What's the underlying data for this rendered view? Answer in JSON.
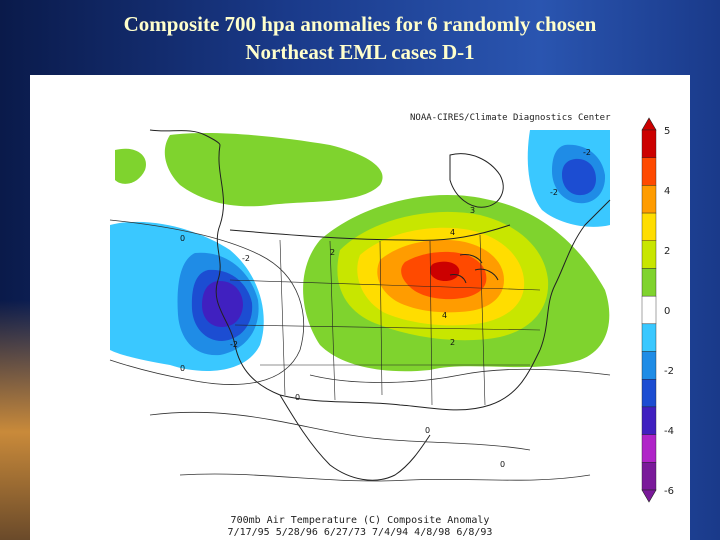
{
  "slide": {
    "title_line1": "Composite 700 hpa anomalies for 6 randomly chosen",
    "title_line2": "Northeast EML cases D-1"
  },
  "map": {
    "header": "NOAA-CIRES/Climate Diagnostics Center",
    "footer_line1": "700mb Air Temperature (C) Composite Anomaly",
    "footer_line2": "7/17/95 5/28/96 6/27/73 7/4/94 4/8/98 6/8/93",
    "contour_labels": [
      "-2",
      "-2",
      "-2",
      "-2",
      "0",
      "0",
      "0",
      "0",
      "0",
      "2",
      "2",
      "3",
      "4",
      "4"
    ],
    "legend": {
      "ticks": [
        "5",
        "4",
        "2",
        "0",
        "-2",
        "-4",
        "-6"
      ],
      "colors": [
        "#cc0000",
        "#ff4a00",
        "#ff9c00",
        "#ffdd00",
        "#c8e600",
        "#7fd32e",
        "#ffffff",
        "#3ac8ff",
        "#1f8ce6",
        "#1c4dd2",
        "#4020c0",
        "#b024c8",
        "#7a1a9a"
      ]
    }
  }
}
